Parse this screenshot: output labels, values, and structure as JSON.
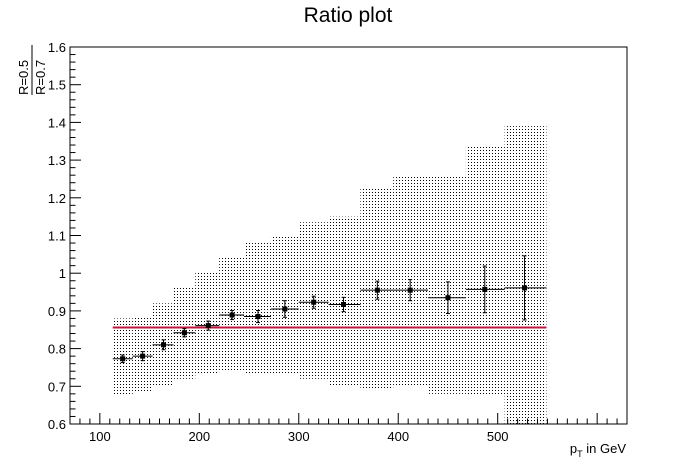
{
  "chart_data": {
    "type": "scatter",
    "title": "Ratio plot",
    "xlabel": {
      "main": "p",
      "sub": "T",
      "suffix": " in GeV"
    },
    "ylabel": {
      "numerator": "R=0.5",
      "denominator": "R=0.7"
    },
    "xlim": [
      70,
      630
    ],
    "ylim": [
      0.6,
      1.6
    ],
    "xticks": [
      100,
      200,
      300,
      400,
      500
    ],
    "yticks": [
      0.6,
      0.7,
      0.8,
      0.9,
      1.0,
      1.1,
      1.2,
      1.3,
      1.4,
      1.5,
      1.6
    ],
    "ytick_labels": [
      "0.6",
      "0.7",
      "0.8",
      "0.9",
      "1",
      "1.1",
      "1.2",
      "1.3",
      "1.4",
      "1.5",
      "1.6"
    ],
    "grid": false,
    "reference_line": {
      "y": 0.856,
      "x_range": [
        113,
        549
      ],
      "color": "#c0143c"
    },
    "series": [
      {
        "style": "points-with-errors",
        "color": "#000000",
        "points": [
          {
            "x": 123,
            "x_lo": 113,
            "x_hi": 133,
            "y": 0.773,
            "y_err": 0.01
          },
          {
            "x": 143,
            "x_lo": 133,
            "x_hi": 153,
            "y": 0.78,
            "y_err": 0.012
          },
          {
            "x": 164,
            "x_lo": 153,
            "x_hi": 174,
            "y": 0.81,
            "y_err": 0.013
          },
          {
            "x": 185,
            "x_lo": 174,
            "x_hi": 196,
            "y": 0.842,
            "y_err": 0.011
          },
          {
            "x": 209,
            "x_lo": 196,
            "x_hi": 220,
            "y": 0.861,
            "y_err": 0.012
          },
          {
            "x": 233,
            "x_lo": 220,
            "x_hi": 245,
            "y": 0.889,
            "y_err": 0.012
          },
          {
            "x": 259,
            "x_lo": 245,
            "x_hi": 272,
            "y": 0.885,
            "y_err": 0.016
          },
          {
            "x": 286,
            "x_lo": 272,
            "x_hi": 300,
            "y": 0.905,
            "y_err": 0.022
          },
          {
            "x": 315,
            "x_lo": 300,
            "x_hi": 330,
            "y": 0.923,
            "y_err": 0.016
          },
          {
            "x": 345,
            "x_lo": 330,
            "x_hi": 362,
            "y": 0.917,
            "y_err": 0.019
          },
          {
            "x": 379,
            "x_lo": 362,
            "x_hi": 395,
            "y": 0.955,
            "y_err": 0.024
          },
          {
            "x": 412,
            "x_lo": 395,
            "x_hi": 430,
            "y": 0.955,
            "y_err": 0.028
          },
          {
            "x": 450,
            "x_lo": 430,
            "x_hi": 468,
            "y": 0.935,
            "y_err": 0.042
          },
          {
            "x": 487,
            "x_lo": 468,
            "x_hi": 507,
            "y": 0.957,
            "y_err": 0.062
          },
          {
            "x": 527,
            "x_lo": 507,
            "x_hi": 549,
            "y": 0.961,
            "y_err": 0.085
          }
        ]
      },
      {
        "style": "uncertainty-band",
        "pattern": "dotted",
        "color": "#000000",
        "bins": [
          {
            "x_lo": 113,
            "x_hi": 133,
            "lo": 0.675,
            "hi": 0.88
          },
          {
            "x_lo": 133,
            "x_hi": 153,
            "lo": 0.685,
            "hi": 0.885
          },
          {
            "x_lo": 153,
            "x_hi": 174,
            "lo": 0.7,
            "hi": 0.92
          },
          {
            "x_lo": 174,
            "x_hi": 196,
            "lo": 0.72,
            "hi": 0.965
          },
          {
            "x_lo": 196,
            "x_hi": 220,
            "lo": 0.73,
            "hi": 1.005
          },
          {
            "x_lo": 220,
            "x_hi": 245,
            "lo": 0.74,
            "hi": 1.045
          },
          {
            "x_lo": 245,
            "x_hi": 272,
            "lo": 0.735,
            "hi": 1.08
          },
          {
            "x_lo": 272,
            "x_hi": 300,
            "lo": 0.73,
            "hi": 1.1
          },
          {
            "x_lo": 300,
            "x_hi": 330,
            "lo": 0.72,
            "hi": 1.135
          },
          {
            "x_lo": 330,
            "x_hi": 362,
            "lo": 0.7,
            "hi": 1.15
          },
          {
            "x_lo": 362,
            "x_hi": 395,
            "lo": 0.69,
            "hi": 1.225
          },
          {
            "x_lo": 395,
            "x_hi": 430,
            "lo": 0.7,
            "hi": 1.26
          },
          {
            "x_lo": 430,
            "x_hi": 468,
            "lo": 0.68,
            "hi": 1.26
          },
          {
            "x_lo": 468,
            "x_hi": 507,
            "lo": 0.675,
            "hi": 1.34
          },
          {
            "x_lo": 507,
            "x_hi": 549,
            "lo": 0.6,
            "hi": 1.39
          }
        ]
      }
    ]
  }
}
